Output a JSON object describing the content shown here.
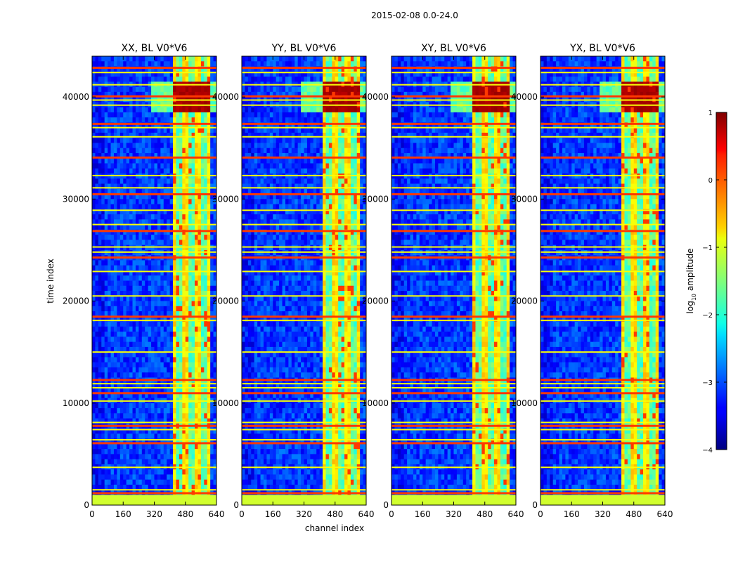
{
  "chart_data": {
    "type": "heatmap",
    "title": "2015-02-08 0.0-24.0",
    "xlabel": "channel index",
    "ylabel": "time index",
    "xlim": [
      0,
      640
    ],
    "ylim": [
      0,
      44000
    ],
    "x_ticks": [
      0,
      160,
      320,
      480,
      640
    ],
    "x_tick_labels": [
      "0",
      "160",
      "320",
      "480",
      "640"
    ],
    "y_ticks": [
      0,
      10000,
      20000,
      30000,
      40000
    ],
    "y_tick_labels": [
      "0",
      "10000",
      "20000",
      "30000",
      "40000"
    ],
    "panels": [
      {
        "name": "XX",
        "title": "XX, BL V0*V6"
      },
      {
        "name": "YY",
        "title": "YY, BL V0*V6"
      },
      {
        "name": "XY",
        "title": "XY, BL V0*V6"
      },
      {
        "name": "YX",
        "title": "YX, BL V0*V6"
      }
    ],
    "colorbar": {
      "label_prefix": "log",
      "label_subscript": "10",
      "label_suffix": " amplitude",
      "range": [
        -4,
        1
      ],
      "ticks": [
        1,
        0,
        -1,
        -2,
        -3,
        -4
      ],
      "tick_labels": [
        "1",
        "0",
        "−1",
        "−2",
        "−3",
        "−4"
      ]
    },
    "notes": {
      "active_channel_band": [
        410,
        600
      ],
      "bright_time_band": [
        38500,
        41500
      ],
      "rfi_rows_time_index": [
        1200,
        1500,
        3700,
        6100,
        6400,
        7400,
        7800,
        8100,
        10200,
        11000,
        11500,
        11900,
        12300,
        15000,
        18100,
        18500,
        20500,
        22900,
        24300,
        24800,
        25300,
        26900,
        27500,
        28900,
        30500,
        31100,
        32300,
        34100,
        36100,
        37000,
        37400,
        39200,
        39700,
        40100,
        41200,
        42400,
        42900
      ]
    }
  }
}
